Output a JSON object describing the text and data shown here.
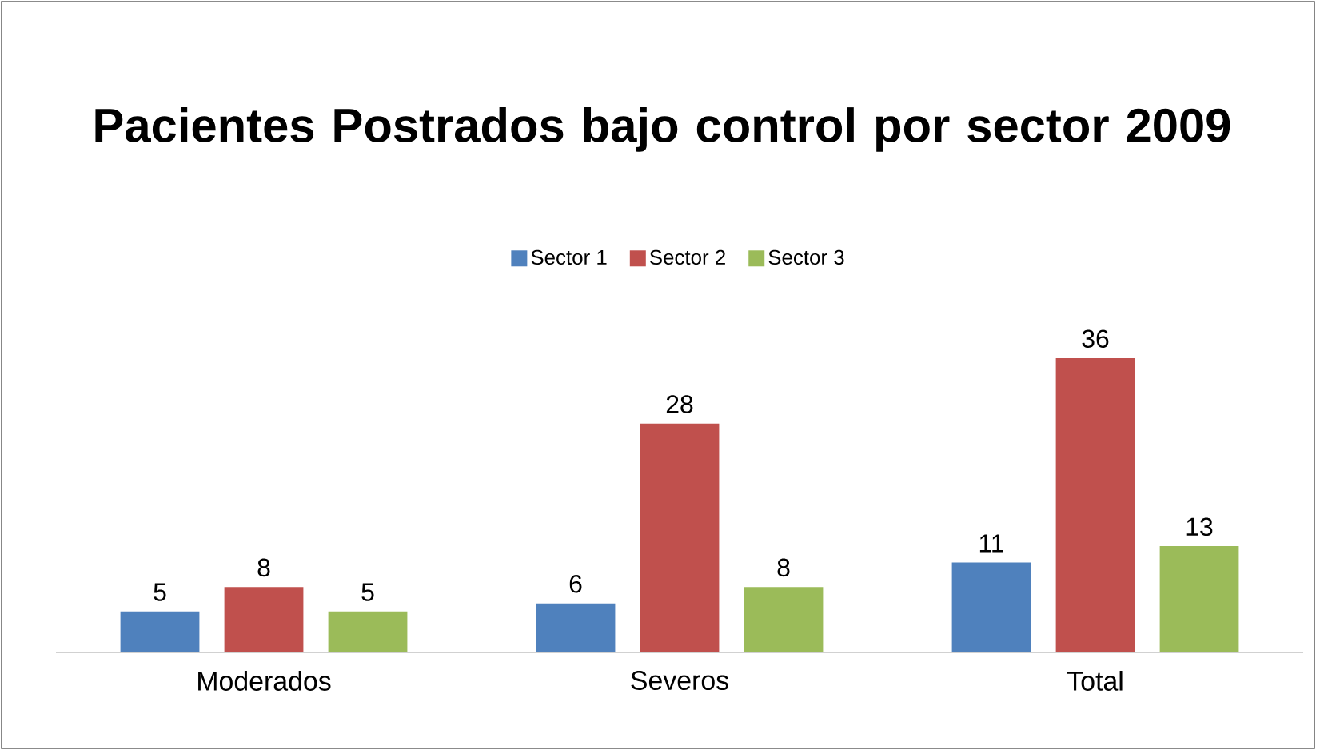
{
  "chart_data": {
    "type": "bar",
    "title": "Pacientes Postrados bajo control por sector 2009",
    "categories": [
      "Moderados",
      "Severos",
      "Total"
    ],
    "series": [
      {
        "name": "Sector 1",
        "color": "#4f81bd",
        "values": [
          5,
          6,
          11
        ]
      },
      {
        "name": "Sector 2",
        "color": "#c0504d",
        "values": [
          8,
          28,
          36
        ]
      },
      {
        "name": "Sector 3",
        "color": "#9bbb59",
        "values": [
          5,
          8,
          13
        ]
      }
    ],
    "data_labels": true,
    "legend": "top"
  }
}
